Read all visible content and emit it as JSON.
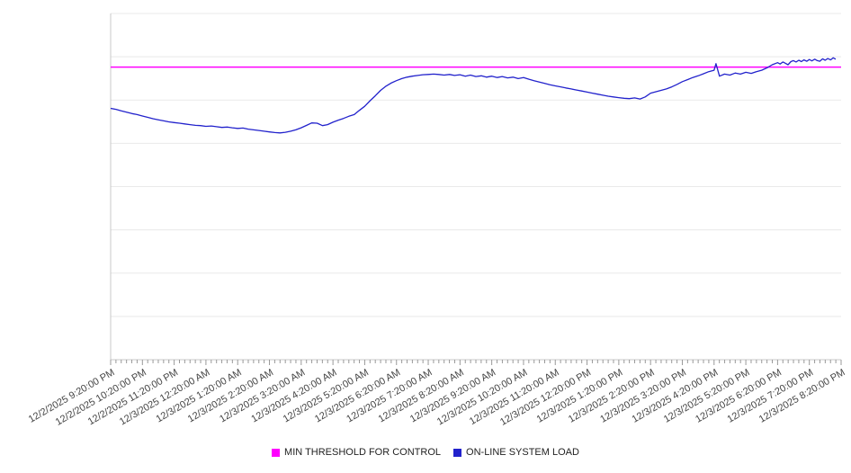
{
  "chart_data": {
    "type": "line",
    "title": "",
    "xlabel": "",
    "ylabel": "",
    "grid": "horizontal",
    "legend_position": "bottom-center",
    "ylim": [
      0,
      100
    ],
    "y_gridline_divisions": 8,
    "x_hours_span": 23,
    "minor_tick_minutes": 10,
    "x_tick_labels": [
      "12/2/2025 9:20:00 PM",
      "12/2/2025 10:20:00 PM",
      "12/2/2025 11:20:00 PM",
      "12/3/2025 12:20:00 AM",
      "12/3/2025 1:20:00 AM",
      "12/3/2025 2:20:00 AM",
      "12/3/2025 3:20:00 AM",
      "12/3/2025 4:20:00 AM",
      "12/3/2025 5:20:00 AM",
      "12/3/2025 6:20:00 AM",
      "12/3/2025 7:20:00 AM",
      "12/3/2025 8:20:00 AM",
      "12/3/2025 9:20:00 AM",
      "12/3/2025 10:20:00 AM",
      "12/3/2025 11:20:00 AM",
      "12/3/2025 12:20:00 PM",
      "12/3/2025 1:20:00 PM",
      "12/3/2025 2:20:00 PM",
      "12/3/2025 3:20:00 PM",
      "12/3/2025 4:20:00 PM",
      "12/3/2025 5:20:00 PM",
      "12/3/2025 6:20:00 PM",
      "12/3/2025 7:20:00 PM",
      "12/3/2025 8:20:00 PM"
    ],
    "series": [
      {
        "name": "MIN THRESHOLD FOR CONTROL",
        "type": "threshold",
        "color": "#ff00ff",
        "value": 84.5
      },
      {
        "name": "ON-LINE SYSTEM LOAD",
        "type": "line",
        "color": "#2222cc",
        "points": [
          [
            0,
            72.6
          ],
          [
            0.17,
            72.3
          ],
          [
            0.33,
            71.9
          ],
          [
            0.5,
            71.5
          ],
          [
            0.67,
            71.1
          ],
          [
            0.83,
            70.8
          ],
          [
            1,
            70.4
          ],
          [
            1.17,
            70.0
          ],
          [
            1.33,
            69.6
          ],
          [
            1.5,
            69.3
          ],
          [
            1.67,
            69.0
          ],
          [
            1.83,
            68.7
          ],
          [
            2,
            68.5
          ],
          [
            2.17,
            68.3
          ],
          [
            2.33,
            68.1
          ],
          [
            2.5,
            67.9
          ],
          [
            2.67,
            67.7
          ],
          [
            2.83,
            67.6
          ],
          [
            3,
            67.4
          ],
          [
            3.17,
            67.5
          ],
          [
            3.33,
            67.3
          ],
          [
            3.5,
            67.1
          ],
          [
            3.67,
            67.2
          ],
          [
            3.83,
            67.0
          ],
          [
            4,
            66.8
          ],
          [
            4.17,
            66.9
          ],
          [
            4.33,
            66.6
          ],
          [
            4.5,
            66.4
          ],
          [
            4.67,
            66.2
          ],
          [
            4.83,
            66.0
          ],
          [
            5,
            65.8
          ],
          [
            5.17,
            65.6
          ],
          [
            5.33,
            65.5
          ],
          [
            5.5,
            65.7
          ],
          [
            5.67,
            66.0
          ],
          [
            5.83,
            66.4
          ],
          [
            6,
            67.0
          ],
          [
            6.17,
            67.7
          ],
          [
            6.33,
            68.4
          ],
          [
            6.5,
            68.3
          ],
          [
            6.67,
            67.6
          ],
          [
            6.83,
            67.9
          ],
          [
            7,
            68.6
          ],
          [
            7.17,
            69.2
          ],
          [
            7.33,
            69.7
          ],
          [
            7.5,
            70.3
          ],
          [
            7.67,
            70.8
          ],
          [
            7.83,
            72.0
          ],
          [
            8,
            73.2
          ],
          [
            8.17,
            74.8
          ],
          [
            8.33,
            76.2
          ],
          [
            8.5,
            77.8
          ],
          [
            8.67,
            79.0
          ],
          [
            8.83,
            79.9
          ],
          [
            9,
            80.6
          ],
          [
            9.17,
            81.2
          ],
          [
            9.33,
            81.6
          ],
          [
            9.5,
            81.9
          ],
          [
            9.67,
            82.1
          ],
          [
            9.83,
            82.3
          ],
          [
            10,
            82.4
          ],
          [
            10.17,
            82.5
          ],
          [
            10.33,
            82.4
          ],
          [
            10.5,
            82.2
          ],
          [
            10.67,
            82.4
          ],
          [
            10.83,
            82.1
          ],
          [
            11,
            82.3
          ],
          [
            11.17,
            81.9
          ],
          [
            11.33,
            82.2
          ],
          [
            11.5,
            81.8
          ],
          [
            11.67,
            82.0
          ],
          [
            11.83,
            81.6
          ],
          [
            12,
            81.9
          ],
          [
            12.17,
            81.5
          ],
          [
            12.33,
            81.8
          ],
          [
            12.5,
            81.4
          ],
          [
            12.67,
            81.6
          ],
          [
            12.83,
            81.2
          ],
          [
            13,
            81.5
          ],
          [
            13.17,
            81.0
          ],
          [
            13.33,
            80.6
          ],
          [
            13.5,
            80.2
          ],
          [
            13.67,
            79.8
          ],
          [
            13.83,
            79.4
          ],
          [
            14,
            79.1
          ],
          [
            14.17,
            78.8
          ],
          [
            14.33,
            78.5
          ],
          [
            14.5,
            78.2
          ],
          [
            14.67,
            77.9
          ],
          [
            14.83,
            77.6
          ],
          [
            15,
            77.3
          ],
          [
            15.17,
            77.0
          ],
          [
            15.33,
            76.7
          ],
          [
            15.5,
            76.4
          ],
          [
            15.67,
            76.1
          ],
          [
            15.83,
            75.9
          ],
          [
            16,
            75.7
          ],
          [
            16.17,
            75.5
          ],
          [
            16.33,
            75.4
          ],
          [
            16.5,
            75.6
          ],
          [
            16.67,
            75.3
          ],
          [
            16.83,
            75.9
          ],
          [
            17,
            77.0
          ],
          [
            17.17,
            77.4
          ],
          [
            17.33,
            77.8
          ],
          [
            17.5,
            78.2
          ],
          [
            17.67,
            78.8
          ],
          [
            17.83,
            79.5
          ],
          [
            18,
            80.3
          ],
          [
            18.17,
            80.9
          ],
          [
            18.33,
            81.5
          ],
          [
            18.5,
            82.0
          ],
          [
            18.67,
            82.6
          ],
          [
            18.83,
            83.2
          ],
          [
            19,
            83.6
          ],
          [
            19.06,
            85.5
          ],
          [
            19.17,
            81.9
          ],
          [
            19.33,
            82.5
          ],
          [
            19.5,
            82.2
          ],
          [
            19.67,
            82.8
          ],
          [
            19.83,
            82.5
          ],
          [
            20,
            83.0
          ],
          [
            20.17,
            82.7
          ],
          [
            20.33,
            83.2
          ],
          [
            20.5,
            83.6
          ],
          [
            20.67,
            84.3
          ],
          [
            20.83,
            85.2
          ],
          [
            21,
            85.8
          ],
          [
            21.08,
            85.4
          ],
          [
            21.17,
            86.0
          ],
          [
            21.25,
            85.6
          ],
          [
            21.33,
            85.2
          ],
          [
            21.42,
            86.1
          ],
          [
            21.5,
            86.4
          ],
          [
            21.58,
            86.0
          ],
          [
            21.67,
            86.5
          ],
          [
            21.75,
            86.1
          ],
          [
            21.83,
            86.6
          ],
          [
            21.92,
            86.2
          ],
          [
            22,
            86.7
          ],
          [
            22.08,
            86.3
          ],
          [
            22.17,
            86.8
          ],
          [
            22.25,
            86.4
          ],
          [
            22.33,
            86.2
          ],
          [
            22.42,
            86.9
          ],
          [
            22.5,
            86.5
          ],
          [
            22.58,
            87.0
          ],
          [
            22.67,
            86.6
          ],
          [
            22.75,
            87.2
          ],
          [
            22.83,
            86.8
          ]
        ]
      }
    ],
    "style": {
      "gridline_color": "#e9e9e9",
      "axis_color": "#c8c8c8",
      "tick_color": "#999999",
      "label_color": "#444444",
      "background": "#ffffff"
    }
  }
}
